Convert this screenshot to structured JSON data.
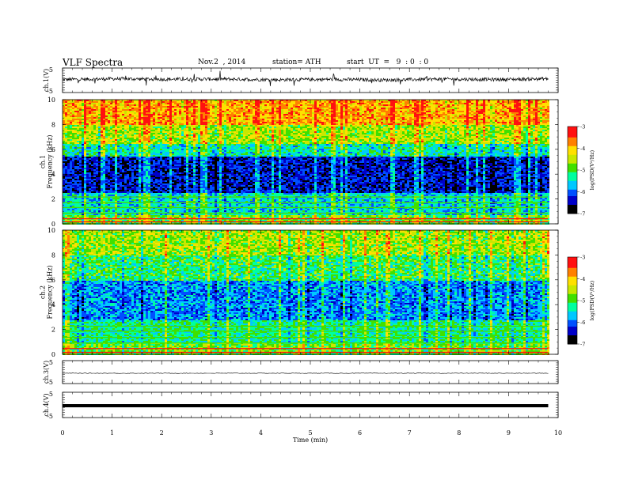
{
  "header": {
    "title": "VLF  Spectra",
    "date": "Nov.2  , 2014",
    "station": "station= ATH",
    "start": "start  UT  =   9  : 0  : 0"
  },
  "chart_data": [
    {
      "type": "line",
      "panel": "ch1",
      "ylabel": "ch.1(V)",
      "ylim": [
        -5,
        5
      ],
      "yticks": [
        "5",
        "-5"
      ],
      "series": [
        {
          "values": [
            0.3,
            0.6,
            0.4,
            0.5,
            0.2,
            0.4,
            0.1,
            0.5,
            0.3,
            0.6
          ]
        }
      ]
    },
    {
      "type": "heatmap",
      "panel": "ch1-spectrogram",
      "ylabel": "ch.1\nFrequency  (kHz)",
      "ylim": [
        0,
        10
      ],
      "yticks": [
        "10",
        "8",
        "6",
        "4",
        "2",
        "0"
      ],
      "colorbar": {
        "label": "log(PSD(V²/Hz)",
        "range": [
          -7,
          -3
        ],
        "ticks": [
          "-3",
          "-4",
          "-5",
          "-6",
          "-7"
        ]
      }
    },
    {
      "type": "heatmap",
      "panel": "ch2-spectrogram",
      "ylabel": "ch.2\nFrequency  (kHz)",
      "ylim": [
        0,
        10
      ],
      "yticks": [
        "10",
        "8",
        "6",
        "4",
        "2",
        "0"
      ],
      "colorbar": {
        "label": "log(PSD(V²/Hz)",
        "range": [
          -7,
          -3
        ],
        "ticks": [
          "-3",
          "-4",
          "-5",
          "-6",
          "-7"
        ]
      }
    },
    {
      "type": "line",
      "panel": "ch3",
      "ylabel": "ch.3(V)",
      "ylim": [
        -5,
        5
      ],
      "yticks": [
        "5",
        "-5"
      ],
      "series": [
        {
          "values": [
            -0.5,
            -0.5,
            -0.5,
            -0.5
          ]
        }
      ]
    },
    {
      "type": "line",
      "panel": "ch4",
      "ylabel": "ch.4(V)",
      "ylim": [
        -5,
        5
      ],
      "yticks": [
        "5",
        "-5"
      ],
      "series": [
        {
          "values": [
            -0.3,
            -0.3,
            -0.3,
            -0.3
          ]
        }
      ]
    }
  ],
  "xaxis": {
    "label": "Time  (min)",
    "range": [
      0,
      10
    ],
    "ticks": [
      "0",
      "1",
      "2",
      "3",
      "4",
      "5",
      "6",
      "7",
      "8",
      "9",
      "10"
    ]
  },
  "colors": {
    "scale": [
      "#000000",
      "#0000c8",
      "#0050ff",
      "#00c8ff",
      "#00ffa0",
      "#40e000",
      "#c8e800",
      "#ffe000",
      "#ff8000",
      "#ff1010",
      "#ffffff"
    ]
  }
}
